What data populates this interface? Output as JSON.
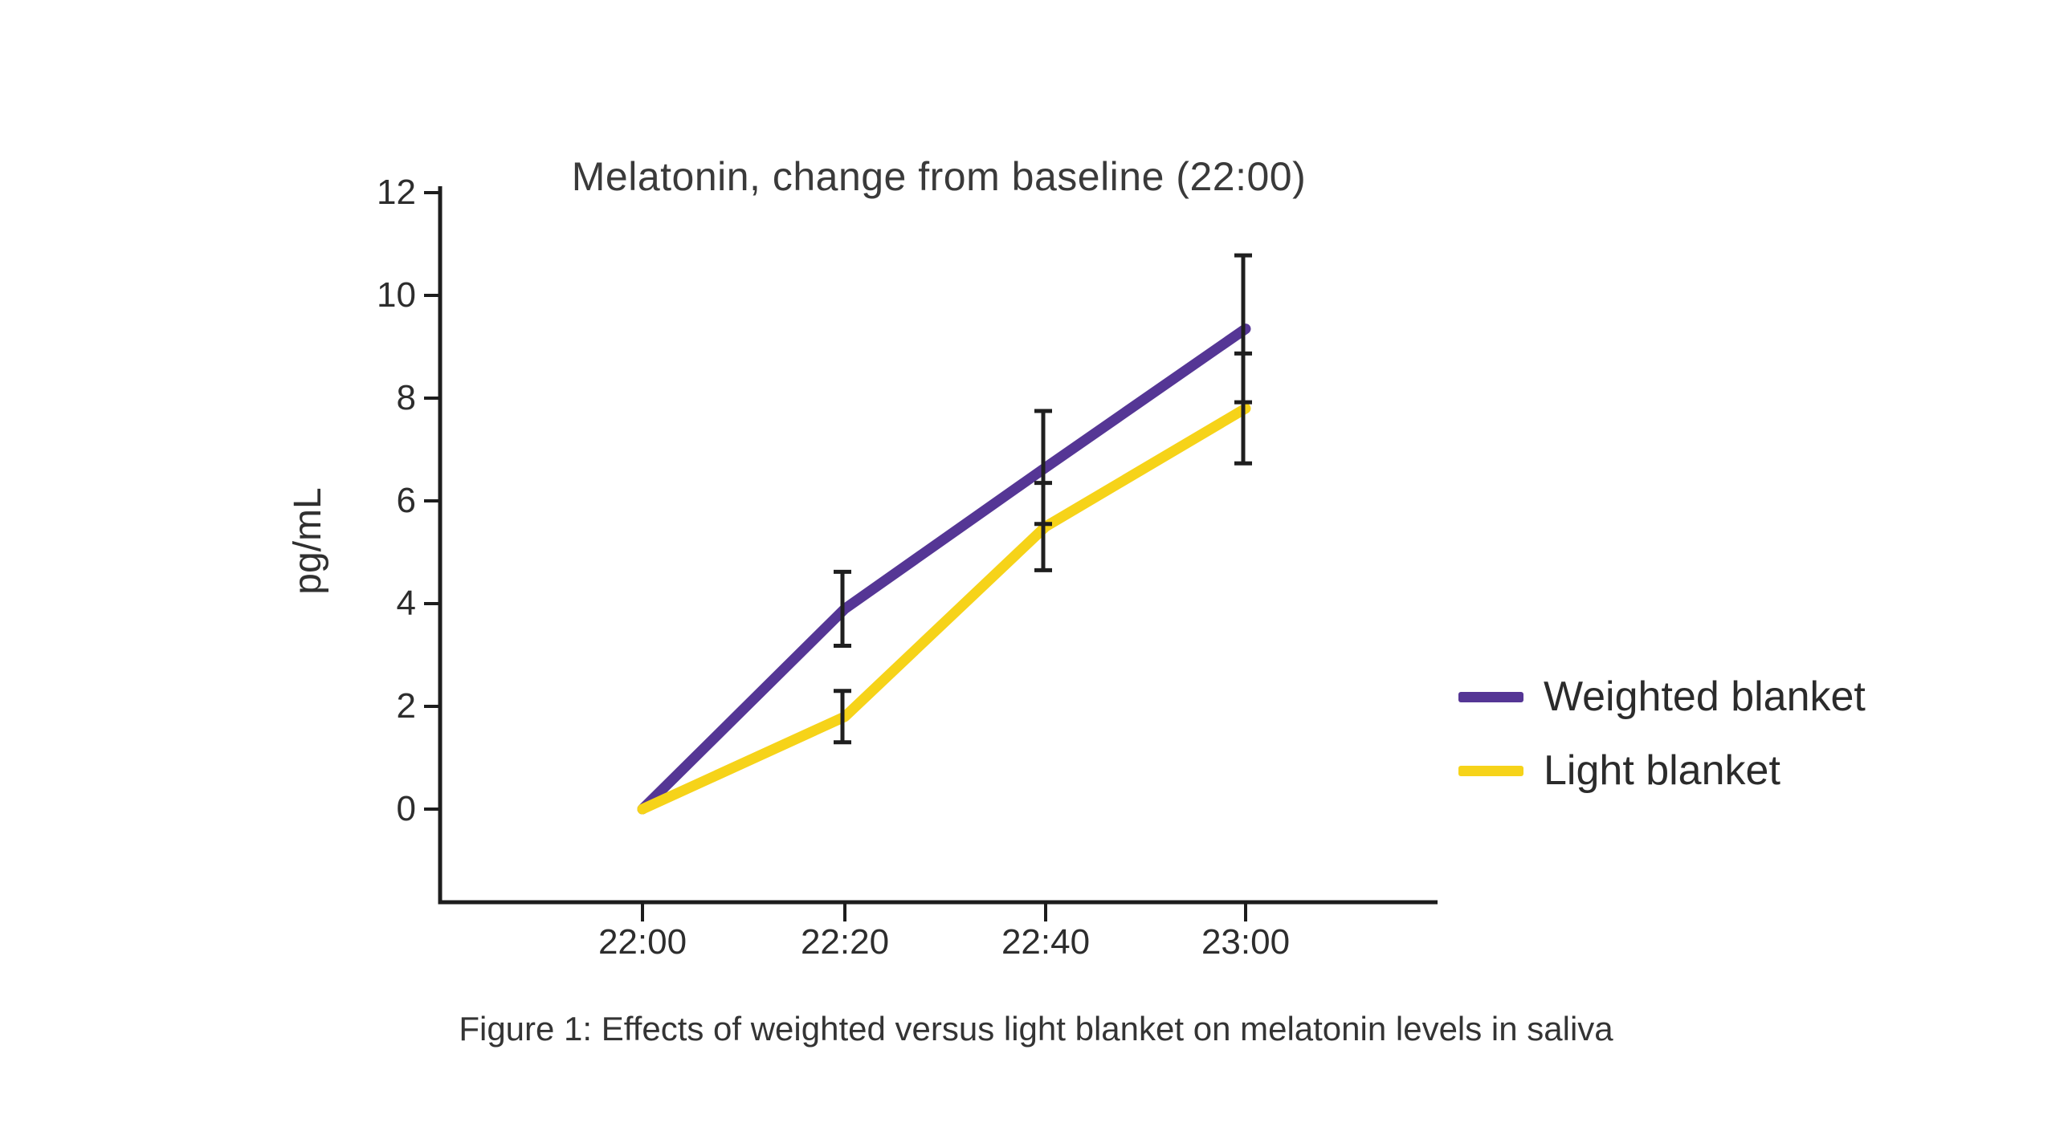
{
  "figure": {
    "title": "Melatonin, change from baseline (22:00)",
    "y_axis_label": "pg/mL",
    "caption": "Figure 1: Effects of weighted versus light blanket on melatonin levels in saliva",
    "legend": [
      {
        "label": "Weighted blanket",
        "color": "#553695"
      },
      {
        "label": "Light blanket",
        "color": "#f6d319"
      }
    ],
    "colors": {
      "weighted_line": "#553695",
      "light_line": "#f6d319",
      "axis": "#1d1d1d",
      "error_bar": "#1f1f1f",
      "text": "#333333",
      "background": "#ffffff"
    }
  },
  "chart_data": {
    "type": "line",
    "title": "Melatonin, change from baseline (22:00)",
    "xlabel": "",
    "ylabel": "pg/mL",
    "categories": [
      "22:00",
      "22:20",
      "22:40",
      "23:00"
    ],
    "y_ticks": [
      12,
      10,
      8,
      6,
      4,
      2,
      0
    ],
    "ylim": [
      -1.8,
      12
    ],
    "grid": false,
    "legend_position": "right",
    "error_bars": "symmetric SD, none at first point",
    "series": [
      {
        "name": "Weighted blanket",
        "color": "#553695",
        "values": [
          0,
          3.9,
          6.65,
          9.35
        ],
        "sd": [
          0,
          0.72,
          1.1,
          1.43
        ]
      },
      {
        "name": "Light blanket",
        "color": "#f6d319",
        "values": [
          0,
          1.8,
          5.5,
          7.8
        ],
        "sd": [
          0,
          0.5,
          0.85,
          1.07
        ]
      }
    ],
    "caption": "Figure 1: Effects of weighted versus light blanket on melatonin levels in saliva"
  }
}
